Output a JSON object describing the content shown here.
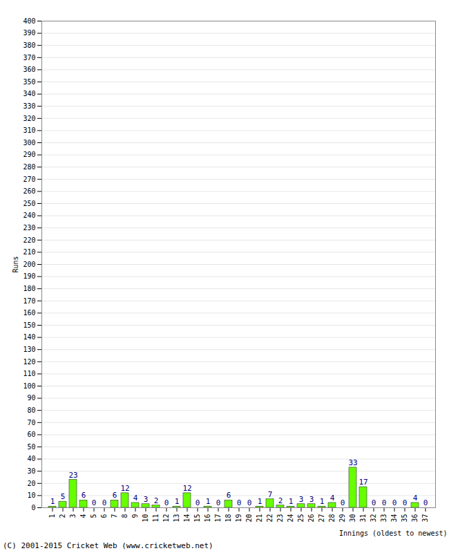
{
  "chart_data": {
    "type": "bar",
    "x_label": "Innings (oldest to newest)",
    "y_label": "Runs",
    "caption": "(C) 2001-2015 Cricket Web (www.cricketweb.net)",
    "categories": [
      "1",
      "2",
      "3",
      "4",
      "5",
      "6",
      "7",
      "8",
      "9",
      "10",
      "11",
      "12",
      "13",
      "14",
      "15",
      "16",
      "17",
      "18",
      "19",
      "20",
      "21",
      "22",
      "23",
      "24",
      "25",
      "26",
      "27",
      "28",
      "29",
      "30",
      "31",
      "32",
      "33",
      "34",
      "35",
      "36",
      "37"
    ],
    "values": [
      1,
      5,
      23,
      6,
      0,
      0,
      6,
      12,
      4,
      3,
      2,
      0,
      1,
      12,
      0,
      1,
      0,
      6,
      0,
      0,
      1,
      7,
      2,
      1,
      3,
      3,
      1,
      4,
      0,
      33,
      17,
      0,
      0,
      0,
      0,
      4,
      0
    ],
    "color": "#66ff00",
    "ylim": [
      0,
      400
    ],
    "yticks": [
      0,
      10,
      20,
      30,
      40,
      50,
      60,
      70,
      80,
      90,
      100,
      110,
      120,
      130,
      140,
      150,
      160,
      170,
      180,
      190,
      200,
      210,
      220,
      230,
      240,
      250,
      260,
      270,
      280,
      290,
      300,
      310,
      320,
      330,
      340,
      350,
      360,
      370,
      380,
      390,
      400
    ],
    "grid": true,
    "data_labels": true
  }
}
